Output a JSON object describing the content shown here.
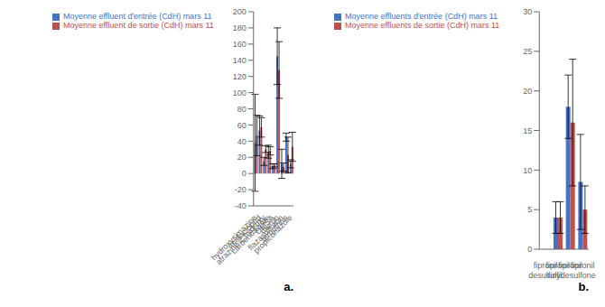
{
  "chart_data": [
    {
      "type": "bar",
      "categories": [
        "hydroxysimazine",
        "imidacloprid",
        "atrazine 2 hydroxy",
        "carbendazime",
        "DMSA",
        "diuron",
        "flazasulfuron",
        "terbuthrin",
        "propiconazole"
      ],
      "series": [
        {
          "name": "Moyenne effluent d'entrée (CdH) mars 11",
          "color": "#4472C4",
          "values": [
            38,
            53,
            15,
            27,
            9,
            145,
            12,
            45,
            12
          ],
          "errors": [
            60,
            18,
            5,
            8,
            3,
            35,
            18,
            5,
            5
          ]
        },
        {
          "name": "Moyenne effluent de sortie (CdH) mars 11",
          "color": "#C0504D",
          "values": [
            47,
            57,
            30,
            28,
            10,
            128,
            8,
            23,
            33
          ],
          "errors": [
            25,
            12,
            4,
            5,
            2,
            35,
            5,
            22,
            18
          ]
        }
      ],
      "ylim": [
        -40,
        200
      ],
      "yticks": [
        -40,
        -20,
        0,
        20,
        40,
        60,
        80,
        100,
        120,
        140,
        160,
        180,
        200
      ],
      "legend": "upper left",
      "grid": false,
      "annotation": "a."
    },
    {
      "type": "bar",
      "categories": [
        "fipronil\ndesulfinyl",
        "fipronil\nsulfide",
        "fipronil",
        "fipronil\nsulfone"
      ],
      "series": [
        {
          "name": "Moyenne effluents d'entrée (CdH) mars 11",
          "color": "#4472C4",
          "values": [
            0,
            4,
            18,
            8.5
          ],
          "errors": [
            0,
            2,
            4,
            6
          ]
        },
        {
          "name": "Moyenne effluents de sortie (CdH) mars 11",
          "color": "#C0504D",
          "values": [
            0,
            4,
            16,
            5
          ],
          "errors": [
            0,
            2,
            8,
            3
          ]
        }
      ],
      "ylim": [
        0,
        30
      ],
      "yticks": [
        0,
        5,
        10,
        15,
        20,
        25,
        30
      ],
      "legend": "upper left",
      "grid": false,
      "annotation": "b."
    }
  ]
}
